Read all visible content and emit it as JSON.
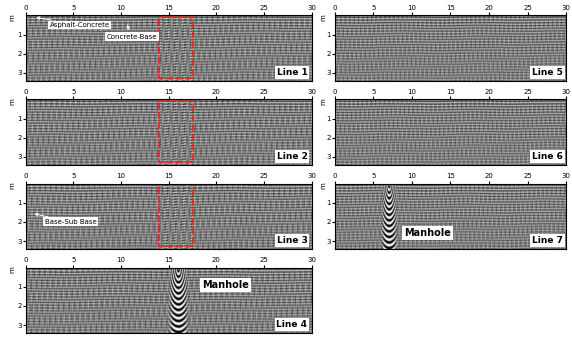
{
  "chart_data": [
    {
      "type": "image",
      "title": "Line 1",
      "xlim": [
        0,
        30
      ],
      "ylim": [
        3.4,
        0
      ],
      "xticks": [
        0,
        5,
        10,
        15,
        20,
        25,
        30
      ],
      "yticks": [
        1,
        2,
        3
      ],
      "y_label": "m",
      "highlight": {
        "x": [
          14,
          17.5
        ],
        "color": "#e8281e"
      },
      "annotations": [
        {
          "text": "Asphalt-Concrete",
          "xy": [
            0.8,
            0.08
          ],
          "xytext": [
            2.5,
            0.5
          ]
        },
        {
          "text": "Concrete-Base",
          "xy": [
            10.5,
            0.35
          ],
          "xytext": [
            8.5,
            1.1
          ]
        }
      ]
    },
    {
      "type": "image",
      "title": "Line 2",
      "xlim": [
        0,
        30
      ],
      "ylim": [
        3.4,
        0
      ],
      "xticks": [
        0,
        5,
        10,
        15,
        20,
        25,
        30
      ],
      "yticks": [
        1,
        2,
        3
      ],
      "y_label": "m",
      "highlight": {
        "x": [
          14,
          17.5
        ],
        "color": "#e8281e"
      },
      "annotations": []
    },
    {
      "type": "image",
      "title": "Line 3",
      "xlim": [
        0,
        30
      ],
      "ylim": [
        3.4,
        0
      ],
      "xticks": [
        0,
        5,
        10,
        15,
        20,
        25,
        30
      ],
      "yticks": [
        1,
        2,
        3
      ],
      "y_label": "m",
      "highlight": {
        "x": [
          14,
          17.5
        ],
        "color": "#e8281e"
      },
      "annotations": [
        {
          "text": "Base-Sub Base",
          "xy": [
            0.6,
            1.55
          ],
          "xytext": [
            2.0,
            2.0
          ]
        }
      ]
    },
    {
      "type": "image",
      "title": "Line 4",
      "xlim": [
        0,
        30
      ],
      "ylim": [
        3.4,
        0
      ],
      "xticks": [
        0,
        5,
        10,
        15,
        20,
        25,
        30
      ],
      "yticks": [
        1,
        2,
        3
      ],
      "y_label": "m",
      "manhole": {
        "x": 16
      },
      "annotations": [
        {
          "text": "Manhole",
          "xy": [
            18,
            0.9
          ],
          "xytext": [
            18.5,
            0.9
          ]
        }
      ]
    },
    {
      "type": "image",
      "title": "Line 5",
      "xlim": [
        0,
        30
      ],
      "ylim": [
        3.4,
        0
      ],
      "xticks": [
        0,
        5,
        10,
        15,
        20,
        25,
        30
      ],
      "yticks": [
        1,
        2,
        3
      ],
      "y_label": "m",
      "annotations": []
    },
    {
      "type": "image",
      "title": "Line 6",
      "xlim": [
        0,
        30
      ],
      "ylim": [
        3.4,
        0
      ],
      "xticks": [
        0,
        5,
        10,
        15,
        20,
        25,
        30
      ],
      "yticks": [
        1,
        2,
        3
      ],
      "y_label": "m",
      "annotations": []
    },
    {
      "type": "image",
      "title": "Line 7",
      "xlim": [
        0,
        30
      ],
      "ylim": [
        3.4,
        0
      ],
      "xticks": [
        0,
        5,
        10,
        15,
        20,
        25,
        30
      ],
      "yticks": [
        1,
        2,
        3
      ],
      "y_label": "m",
      "manhole": {
        "x": 7
      },
      "annotations": [
        {
          "text": "Manhole",
          "xy": [
            8.5,
            2.6
          ],
          "xytext": [
            9.0,
            2.6
          ]
        }
      ]
    }
  ]
}
